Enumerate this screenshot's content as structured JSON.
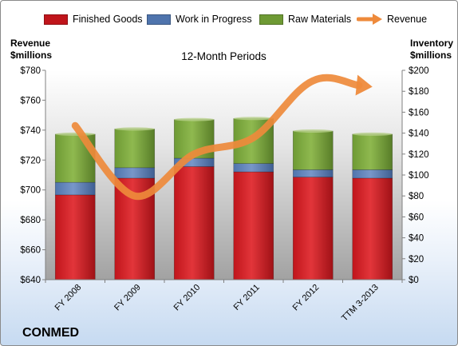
{
  "company": "CONMED",
  "chart_data": {
    "type": "bar",
    "stacked": true,
    "title": "12-Month Periods",
    "categories": [
      "FY 2008",
      "FY 2009",
      "FY 2010",
      "FY 2011",
      "FY 2012",
      "TTM 3-2013"
    ],
    "series": [
      {
        "name": "Finished Goods",
        "axis": "right",
        "color": "#c0151b",
        "values": [
          81,
          97,
          108,
          103,
          98,
          97
        ]
      },
      {
        "name": "Work in Progress",
        "axis": "right",
        "color": "#4f74ad",
        "values": [
          12,
          10,
          8,
          8,
          7,
          8
        ]
      },
      {
        "name": "Raw Materials",
        "axis": "right",
        "color": "#6e9a34",
        "values": [
          46,
          37,
          37,
          43,
          37,
          34
        ]
      },
      {
        "name": "Revenue",
        "axis": "left",
        "type": "line",
        "color": "#ee8a3b",
        "values": [
          743,
          696,
          724,
          735,
          773,
          769
        ]
      }
    ],
    "left_axis": {
      "title_line1": "Revenue",
      "title_line2": "$millions",
      "min": 640,
      "max": 780,
      "step": 20,
      "prefix": "$"
    },
    "right_axis": {
      "title_line1": "Inventory",
      "title_line2": "$millions",
      "min": 0,
      "max": 200,
      "step": 20,
      "prefix": "$"
    },
    "legend_position": "top",
    "grid": false
  }
}
